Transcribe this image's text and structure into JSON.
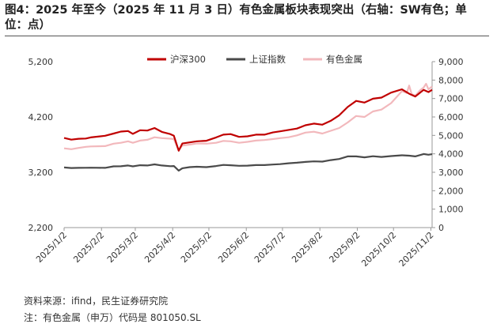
{
  "title": "图4：2025 年至今（2025 年 11 月 3 日）有色金属板块表现突出（右轴：SW有色；单位：点）",
  "footer": {
    "source": "资料来源：ifind，民生证券研究院",
    "note": "注：有色金属（申万）代码是 801050.SL"
  },
  "chart_data": {
    "type": "line",
    "title": "",
    "xlabel": "",
    "ylabel": "",
    "x_ticks": [
      "2025/1/2",
      "2025/2/2",
      "2025/3/2",
      "2025/4/2",
      "2025/5/2",
      "2025/6/2",
      "2025/7/2",
      "2025/8/2",
      "2025/9/2",
      "2025/10/2",
      "2025/11/2"
    ],
    "x_range": [
      "2025-01-02",
      "2025-11-03"
    ],
    "left_axis": {
      "ylim": [
        2200,
        5200
      ],
      "ticks": [
        "2,200",
        "3,200",
        "4,200",
        "5,200"
      ],
      "tick_values": [
        2200,
        3200,
        4200,
        5200
      ]
    },
    "right_axis": {
      "ylim": [
        0,
        9000
      ],
      "ticks": [
        "0",
        "1,000",
        "2,000",
        "3,000",
        "4,000",
        "5,000",
        "6,000",
        "7,000",
        "8,000",
        "9,000"
      ],
      "tick_values": [
        0,
        1000,
        2000,
        3000,
        4000,
        5000,
        6000,
        7000,
        8000,
        9000
      ]
    },
    "legend_position": "top",
    "series": [
      {
        "name": "沪深300",
        "axis": "left",
        "color": "#c00000",
        "points": [
          [
            "2025-01-02",
            3820
          ],
          [
            "2025-01-08",
            3790
          ],
          [
            "2025-01-14",
            3805
          ],
          [
            "2025-01-20",
            3810
          ],
          [
            "2025-01-24",
            3830
          ],
          [
            "2025-02-05",
            3860
          ],
          [
            "2025-02-12",
            3900
          ],
          [
            "2025-02-18",
            3935
          ],
          [
            "2025-02-24",
            3945
          ],
          [
            "2025-02-28",
            3895
          ],
          [
            "2025-03-06",
            3960
          ],
          [
            "2025-03-12",
            3955
          ],
          [
            "2025-03-18",
            4000
          ],
          [
            "2025-03-24",
            3930
          ],
          [
            "2025-03-31",
            3890
          ],
          [
            "2025-04-03",
            3860
          ],
          [
            "2025-04-07",
            3590
          ],
          [
            "2025-04-10",
            3720
          ],
          [
            "2025-04-16",
            3740
          ],
          [
            "2025-04-22",
            3760
          ],
          [
            "2025-04-30",
            3770
          ],
          [
            "2025-05-08",
            3830
          ],
          [
            "2025-05-14",
            3880
          ],
          [
            "2025-05-20",
            3890
          ],
          [
            "2025-05-27",
            3840
          ],
          [
            "2025-06-03",
            3850
          ],
          [
            "2025-06-10",
            3880
          ],
          [
            "2025-06-17",
            3880
          ],
          [
            "2025-06-24",
            3920
          ],
          [
            "2025-06-30",
            3940
          ],
          [
            "2025-07-07",
            3965
          ],
          [
            "2025-07-14",
            3990
          ],
          [
            "2025-07-21",
            4050
          ],
          [
            "2025-07-28",
            4080
          ],
          [
            "2025-08-04",
            4060
          ],
          [
            "2025-08-11",
            4130
          ],
          [
            "2025-08-18",
            4230
          ],
          [
            "2025-08-25",
            4380
          ],
          [
            "2025-09-01",
            4490
          ],
          [
            "2025-09-08",
            4460
          ],
          [
            "2025-09-15",
            4530
          ],
          [
            "2025-09-22",
            4550
          ],
          [
            "2025-09-30",
            4640
          ],
          [
            "2025-10-09",
            4700
          ],
          [
            "2025-10-15",
            4620
          ],
          [
            "2025-10-20",
            4570
          ],
          [
            "2025-10-27",
            4690
          ],
          [
            "2025-10-31",
            4650
          ],
          [
            "2025-11-03",
            4690
          ]
        ]
      },
      {
        "name": "上证指数",
        "axis": "right",
        "color": "#4a4a4a",
        "points": [
          [
            "2025-01-02",
            3260
          ],
          [
            "2025-01-08",
            3230
          ],
          [
            "2025-01-14",
            3240
          ],
          [
            "2025-01-20",
            3245
          ],
          [
            "2025-01-24",
            3250
          ],
          [
            "2025-02-05",
            3240
          ],
          [
            "2025-02-12",
            3320
          ],
          [
            "2025-02-18",
            3325
          ],
          [
            "2025-02-24",
            3370
          ],
          [
            "2025-02-28",
            3320
          ],
          [
            "2025-03-06",
            3380
          ],
          [
            "2025-03-12",
            3370
          ],
          [
            "2025-03-18",
            3430
          ],
          [
            "2025-03-24",
            3370
          ],
          [
            "2025-03-31",
            3330
          ],
          [
            "2025-04-03",
            3340
          ],
          [
            "2025-04-07",
            3090
          ],
          [
            "2025-04-10",
            3220
          ],
          [
            "2025-04-16",
            3280
          ],
          [
            "2025-04-22",
            3300
          ],
          [
            "2025-04-30",
            3280
          ],
          [
            "2025-05-08",
            3340
          ],
          [
            "2025-05-14",
            3400
          ],
          [
            "2025-05-20",
            3380
          ],
          [
            "2025-05-27",
            3350
          ],
          [
            "2025-06-03",
            3360
          ],
          [
            "2025-06-10",
            3390
          ],
          [
            "2025-06-17",
            3390
          ],
          [
            "2025-06-24",
            3420
          ],
          [
            "2025-06-30",
            3440
          ],
          [
            "2025-07-07",
            3490
          ],
          [
            "2025-07-14",
            3520
          ],
          [
            "2025-07-21",
            3560
          ],
          [
            "2025-07-28",
            3590
          ],
          [
            "2025-08-04",
            3580
          ],
          [
            "2025-08-11",
            3660
          ],
          [
            "2025-08-18",
            3720
          ],
          [
            "2025-08-25",
            3860
          ],
          [
            "2025-09-01",
            3860
          ],
          [
            "2025-09-08",
            3810
          ],
          [
            "2025-09-15",
            3870
          ],
          [
            "2025-09-22",
            3830
          ],
          [
            "2025-09-30",
            3880
          ],
          [
            "2025-10-09",
            3920
          ],
          [
            "2025-10-15",
            3900
          ],
          [
            "2025-10-20",
            3860
          ],
          [
            "2025-10-27",
            3990
          ],
          [
            "2025-10-31",
            3950
          ],
          [
            "2025-11-03",
            3980
          ]
        ]
      },
      {
        "name": "有色金属",
        "axis": "right",
        "color": "#f2b8bc",
        "points": [
          [
            "2025-01-02",
            4300
          ],
          [
            "2025-01-08",
            4250
          ],
          [
            "2025-01-14",
            4320
          ],
          [
            "2025-01-20",
            4380
          ],
          [
            "2025-01-24",
            4400
          ],
          [
            "2025-02-05",
            4420
          ],
          [
            "2025-02-12",
            4550
          ],
          [
            "2025-02-18",
            4600
          ],
          [
            "2025-02-24",
            4680
          ],
          [
            "2025-02-28",
            4600
          ],
          [
            "2025-03-06",
            4720
          ],
          [
            "2025-03-12",
            4760
          ],
          [
            "2025-03-18",
            4900
          ],
          [
            "2025-03-24",
            4850
          ],
          [
            "2025-03-31",
            4820
          ],
          [
            "2025-04-03",
            4800
          ],
          [
            "2025-04-07",
            4200
          ],
          [
            "2025-04-10",
            4450
          ],
          [
            "2025-04-16",
            4500
          ],
          [
            "2025-04-22",
            4560
          ],
          [
            "2025-04-30",
            4550
          ],
          [
            "2025-05-08",
            4600
          ],
          [
            "2025-05-14",
            4700
          ],
          [
            "2025-05-20",
            4680
          ],
          [
            "2025-05-27",
            4600
          ],
          [
            "2025-06-03",
            4650
          ],
          [
            "2025-06-10",
            4720
          ],
          [
            "2025-06-17",
            4750
          ],
          [
            "2025-06-24",
            4800
          ],
          [
            "2025-06-30",
            4850
          ],
          [
            "2025-07-07",
            4900
          ],
          [
            "2025-07-14",
            5000
          ],
          [
            "2025-07-21",
            5150
          ],
          [
            "2025-07-28",
            5200
          ],
          [
            "2025-08-04",
            5100
          ],
          [
            "2025-08-11",
            5250
          ],
          [
            "2025-08-18",
            5400
          ],
          [
            "2025-08-25",
            5700
          ],
          [
            "2025-09-01",
            6050
          ],
          [
            "2025-09-08",
            6000
          ],
          [
            "2025-09-15",
            6300
          ],
          [
            "2025-09-22",
            6400
          ],
          [
            "2025-09-30",
            6750
          ],
          [
            "2025-10-09",
            7400
          ],
          [
            "2025-10-13",
            7300
          ],
          [
            "2025-10-15",
            7700
          ],
          [
            "2025-10-17",
            7250
          ],
          [
            "2025-10-20",
            7150
          ],
          [
            "2025-10-24",
            7450
          ],
          [
            "2025-10-27",
            7600
          ],
          [
            "2025-10-29",
            7800
          ],
          [
            "2025-10-31",
            7500
          ],
          [
            "2025-11-03",
            7650
          ]
        ]
      }
    ]
  }
}
